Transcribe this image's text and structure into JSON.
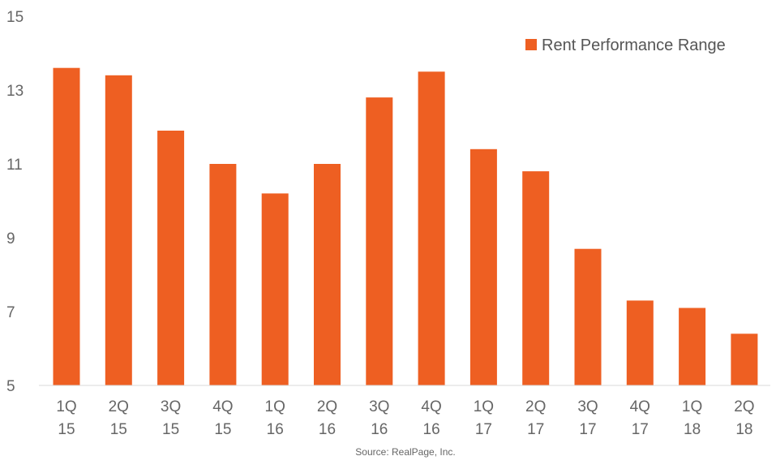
{
  "chart_data": {
    "type": "bar",
    "categories": [
      [
        "1Q",
        "15"
      ],
      [
        "2Q",
        "15"
      ],
      [
        "3Q",
        "15"
      ],
      [
        "4Q",
        "15"
      ],
      [
        "1Q",
        "16"
      ],
      [
        "2Q",
        "16"
      ],
      [
        "3Q",
        "16"
      ],
      [
        "4Q",
        "16"
      ],
      [
        "1Q",
        "17"
      ],
      [
        "2Q",
        "17"
      ],
      [
        "3Q",
        "17"
      ],
      [
        "4Q",
        "17"
      ],
      [
        "1Q",
        "18"
      ],
      [
        "2Q",
        "18"
      ]
    ],
    "series": [
      {
        "name": "Rent Performance Range",
        "values": [
          13.6,
          13.4,
          11.9,
          11.0,
          10.2,
          11.0,
          12.8,
          13.5,
          11.4,
          10.8,
          8.7,
          7.3,
          7.1,
          6.4
        ]
      }
    ],
    "yticks": [
      "5",
      "7",
      "9",
      "11",
      "13",
      "15"
    ],
    "ylim": [
      5,
      15
    ],
    "grid": false,
    "legend_position": "top-right",
    "bar_color": "#ee5f22",
    "source": "Source: RealPage, Inc."
  }
}
